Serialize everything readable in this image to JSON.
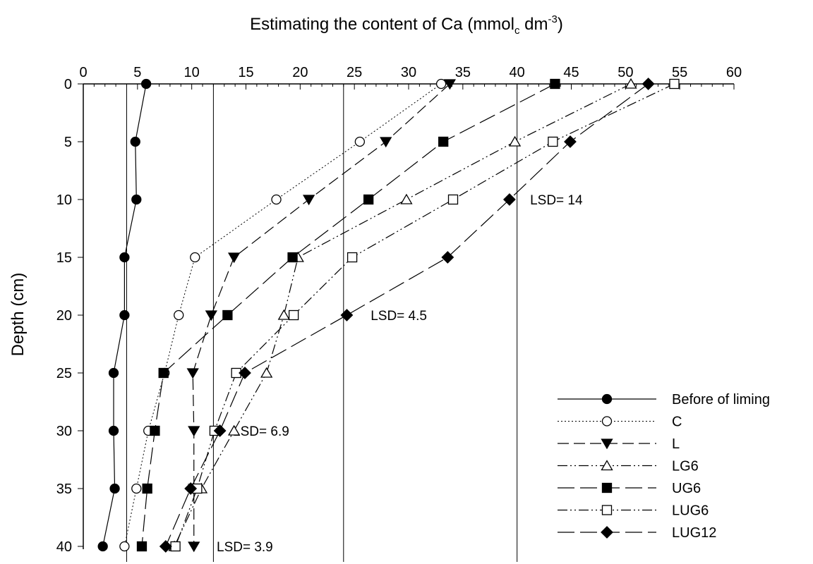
{
  "chart_data": {
    "type": "line",
    "title_prefix": "Estimating the content of Ca (mmol",
    "title_sub": "c",
    "title_mid": " dm",
    "title_sup": "-3",
    "title_suffix": ")",
    "ylabel": "Depth (cm)",
    "xlim": [
      0,
      60
    ],
    "ylim": [
      0,
      40
    ],
    "x_axis_position": "top",
    "y_axis_reversed": true,
    "x_ticks": [
      0,
      5,
      10,
      15,
      20,
      25,
      30,
      35,
      40,
      45,
      50,
      55,
      60
    ],
    "y_ticks": [
      0,
      5,
      10,
      15,
      20,
      25,
      30,
      35,
      40
    ],
    "grid": false,
    "legend_position": "bottom-right",
    "lsd_lines": [
      {
        "x": 4,
        "label": "LSD= 3.9",
        "label_x": 12.3,
        "label_y": 40
      },
      {
        "x": 12,
        "label": "LSD= 6.9",
        "label_x": 13.8,
        "label_y": 30
      },
      {
        "x": 24,
        "label": "LSD= 4.5",
        "label_x": 26.5,
        "label_y": 20
      },
      {
        "x": 40,
        "label": "LSD= 14",
        "label_x": 41.2,
        "label_y": 10
      }
    ],
    "series": [
      {
        "name": "Before of liming",
        "style": "solid",
        "marker": "circle-filled",
        "points": [
          [
            5.8,
            0
          ],
          [
            4.8,
            5
          ],
          [
            4.9,
            10
          ],
          [
            3.8,
            15
          ],
          [
            3.8,
            20
          ],
          [
            2.8,
            25
          ],
          [
            2.8,
            30
          ],
          [
            2.9,
            35
          ],
          [
            1.8,
            40
          ]
        ]
      },
      {
        "name": "C",
        "style": "dotted",
        "marker": "circle-open",
        "points": [
          [
            33,
            0
          ],
          [
            25.5,
            5
          ],
          [
            17.8,
            10
          ],
          [
            10.3,
            15
          ],
          [
            8.8,
            20
          ],
          [
            7.5,
            25
          ],
          [
            6,
            30
          ],
          [
            4.9,
            35
          ],
          [
            3.8,
            40
          ]
        ]
      },
      {
        "name": "L",
        "style": "dash",
        "marker": "triangle-down-filled",
        "points": [
          [
            33.8,
            0
          ],
          [
            27.9,
            5
          ],
          [
            20.8,
            10
          ],
          [
            13.9,
            15
          ],
          [
            11.8,
            20
          ],
          [
            10.1,
            25
          ],
          [
            10.2,
            30
          ],
          [
            10.2,
            35
          ],
          [
            10.2,
            40
          ]
        ]
      },
      {
        "name": "LG6",
        "style": "dashdotdot",
        "marker": "triangle-up-open",
        "points": [
          [
            50.5,
            0
          ],
          [
            39.8,
            5
          ],
          [
            29.8,
            10
          ],
          [
            19.8,
            15
          ],
          [
            18.5,
            20
          ],
          [
            16.9,
            25
          ],
          [
            13.9,
            30
          ],
          [
            10.9,
            35
          ],
          [
            8.4,
            40
          ]
        ]
      },
      {
        "name": "UG6",
        "style": "longdash",
        "marker": "square-filled",
        "points": [
          [
            43.5,
            0
          ],
          [
            33.2,
            5
          ],
          [
            26.3,
            10
          ],
          [
            19.3,
            15
          ],
          [
            13.3,
            20
          ],
          [
            7.4,
            25
          ],
          [
            6.6,
            30
          ],
          [
            5.9,
            35
          ],
          [
            5.4,
            40
          ]
        ]
      },
      {
        "name": "LUG6",
        "style": "dashdotdot",
        "marker": "square-open",
        "points": [
          [
            54.5,
            0
          ],
          [
            43.3,
            5
          ],
          [
            34.1,
            10
          ],
          [
            24.8,
            15
          ],
          [
            19.4,
            20
          ],
          [
            14.1,
            25
          ],
          [
            12.1,
            30
          ],
          [
            10.5,
            35
          ],
          [
            8.5,
            40
          ]
        ]
      },
      {
        "name": "LUG12",
        "style": "longdash",
        "marker": "diamond-filled",
        "points": [
          [
            52.1,
            0
          ],
          [
            44.9,
            5
          ],
          [
            39.3,
            10
          ],
          [
            33.6,
            15
          ],
          [
            24.3,
            20
          ],
          [
            14.9,
            25
          ],
          [
            12.6,
            30
          ],
          [
            9.9,
            35
          ],
          [
            7.6,
            40
          ]
        ]
      }
    ]
  }
}
